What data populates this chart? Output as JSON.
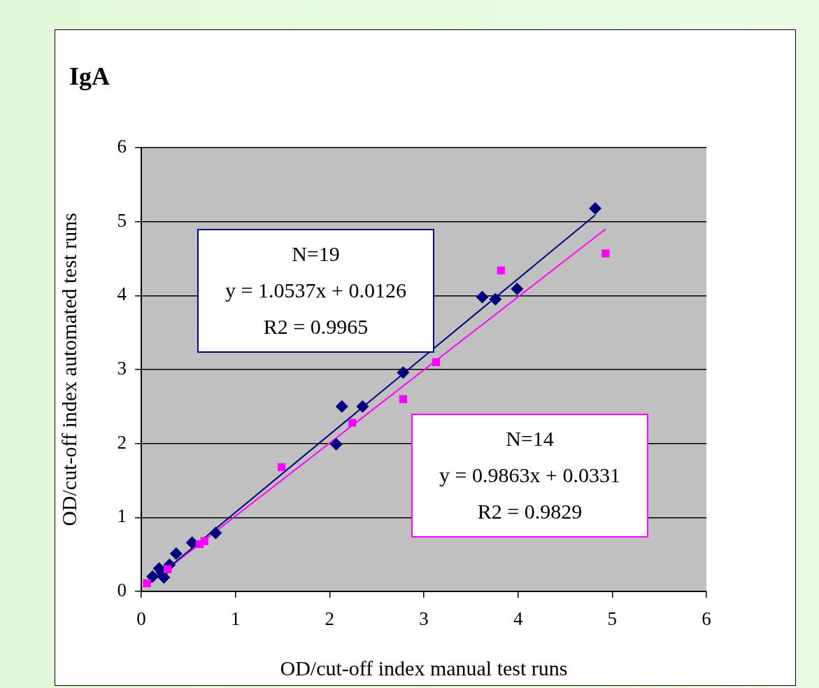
{
  "chart_data": {
    "type": "scatter",
    "title": "IgA",
    "xlabel": "OD/cut-off index manual test runs",
    "ylabel": "OD/cut-off index automated test runs",
    "xlim": [
      0,
      6
    ],
    "ylim": [
      0,
      6
    ],
    "xticks": [
      0,
      1,
      2,
      3,
      4,
      5,
      6
    ],
    "yticks": [
      0,
      1,
      2,
      3,
      4,
      5,
      6
    ],
    "grid": "y",
    "legend": false,
    "series": [
      {
        "color": "#000080",
        "marker": "diamond",
        "x": [
          4.82,
          3.99,
          3.76,
          3.62,
          2.78,
          2.35,
          2.13,
          2.07,
          0.79,
          0.54,
          0.37,
          0.19,
          0.3,
          0.24,
          0.12,
          0.22
        ],
        "values": [
          5.18,
          4.09,
          3.95,
          3.98,
          2.96,
          2.5,
          2.5,
          1.99,
          0.79,
          0.66,
          0.51,
          0.31,
          0.36,
          0.19,
          0.2,
          0.25
        ]
      },
      {
        "color": "#ff00ff",
        "marker": "square",
        "x": [
          4.93,
          3.82,
          3.13,
          2.78,
          2.24,
          1.49,
          0.67,
          0.62,
          0.28,
          0.06
        ],
        "values": [
          4.57,
          4.34,
          3.1,
          2.6,
          2.28,
          1.68,
          0.68,
          0.64,
          0.3,
          0.11
        ]
      },
      {
        "type": "line",
        "color": "#000080",
        "marker": "none",
        "x": [
          0.07,
          4.82
        ],
        "values": [
          0.09,
          5.09
        ]
      },
      {
        "type": "line",
        "color": "#ff00ff",
        "marker": "none",
        "x": [
          0.05,
          4.93
        ],
        "values": [
          0.08,
          4.9
        ]
      }
    ],
    "annotations": [
      "N=19\ny = 1.0537x + 0.0126\nR2 = 0.9965",
      "N=14\ny = 0.9863x + 0.0331\nR2 = 0.9829"
    ]
  }
}
